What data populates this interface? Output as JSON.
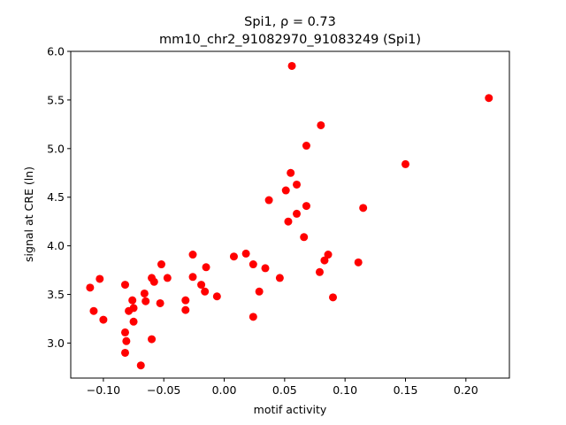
{
  "chart_data": {
    "type": "scatter",
    "title_line1": "Spi1, ρ = 0.73",
    "title_line2": "mm10_chr2_91082970_91083249 (Spi1)",
    "xlabel": "motif activity",
    "ylabel": "signal at CRE (ln)",
    "xlim": [
      -0.127,
      0.236
    ],
    "ylim": [
      2.64,
      6.0
    ],
    "xticks": [
      -0.1,
      -0.05,
      0.0,
      0.05,
      0.1,
      0.15,
      0.2
    ],
    "xtick_labels": [
      "−0.10",
      "−0.05",
      "0.00",
      "0.05",
      "0.10",
      "0.15",
      "0.20"
    ],
    "yticks": [
      3.0,
      3.5,
      4.0,
      4.5,
      5.0,
      5.5,
      6.0
    ],
    "ytick_labels": [
      "3.0",
      "3.5",
      "4.0",
      "4.5",
      "5.0",
      "5.5",
      "6.0"
    ],
    "grid": false,
    "marker_color": "#ff0000",
    "points": [
      {
        "x": -0.111,
        "y": 3.57
      },
      {
        "x": -0.108,
        "y": 3.33
      },
      {
        "x": -0.103,
        "y": 3.66
      },
      {
        "x": -0.1,
        "y": 3.24
      },
      {
        "x": -0.082,
        "y": 3.6
      },
      {
        "x": -0.082,
        "y": 3.11
      },
      {
        "x": -0.081,
        "y": 3.02
      },
      {
        "x": -0.082,
        "y": 2.9
      },
      {
        "x": -0.079,
        "y": 3.33
      },
      {
        "x": -0.076,
        "y": 3.44
      },
      {
        "x": -0.075,
        "y": 3.36
      },
      {
        "x": -0.075,
        "y": 3.22
      },
      {
        "x": -0.069,
        "y": 2.77
      },
      {
        "x": -0.066,
        "y": 3.51
      },
      {
        "x": -0.065,
        "y": 3.43
      },
      {
        "x": -0.06,
        "y": 3.67
      },
      {
        "x": -0.06,
        "y": 3.04
      },
      {
        "x": -0.058,
        "y": 3.63
      },
      {
        "x": -0.052,
        "y": 3.81
      },
      {
        "x": -0.053,
        "y": 3.41
      },
      {
        "x": -0.047,
        "y": 3.67
      },
      {
        "x": -0.032,
        "y": 3.44
      },
      {
        "x": -0.032,
        "y": 3.34
      },
      {
        "x": -0.026,
        "y": 3.91
      },
      {
        "x": -0.026,
        "y": 3.68
      },
      {
        "x": -0.019,
        "y": 3.6
      },
      {
        "x": -0.016,
        "y": 3.53
      },
      {
        "x": -0.015,
        "y": 3.78
      },
      {
        "x": -0.006,
        "y": 3.48
      },
      {
        "x": 0.008,
        "y": 3.89
      },
      {
        "x": 0.018,
        "y": 3.92
      },
      {
        "x": 0.024,
        "y": 3.81
      },
      {
        "x": 0.024,
        "y": 3.27
      },
      {
        "x": 0.029,
        "y": 3.53
      },
      {
        "x": 0.034,
        "y": 3.77
      },
      {
        "x": 0.037,
        "y": 4.47
      },
      {
        "x": 0.046,
        "y": 3.67
      },
      {
        "x": 0.051,
        "y": 4.57
      },
      {
        "x": 0.053,
        "y": 4.25
      },
      {
        "x": 0.055,
        "y": 4.75
      },
      {
        "x": 0.056,
        "y": 5.85
      },
      {
        "x": 0.06,
        "y": 4.63
      },
      {
        "x": 0.06,
        "y": 4.33
      },
      {
        "x": 0.066,
        "y": 4.09
      },
      {
        "x": 0.068,
        "y": 5.03
      },
      {
        "x": 0.068,
        "y": 4.41
      },
      {
        "x": 0.079,
        "y": 3.73
      },
      {
        "x": 0.08,
        "y": 5.24
      },
      {
        "x": 0.083,
        "y": 3.85
      },
      {
        "x": 0.086,
        "y": 3.91
      },
      {
        "x": 0.09,
        "y": 3.47
      },
      {
        "x": 0.111,
        "y": 3.83
      },
      {
        "x": 0.115,
        "y": 4.39
      },
      {
        "x": 0.15,
        "y": 4.84
      },
      {
        "x": 0.219,
        "y": 5.52
      }
    ]
  }
}
